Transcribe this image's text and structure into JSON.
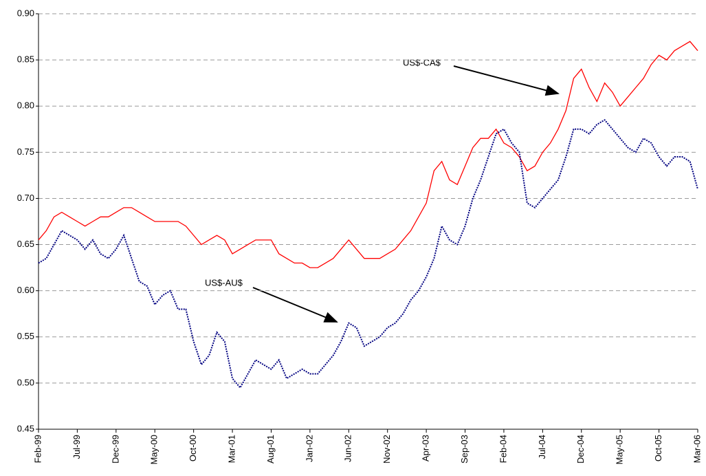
{
  "chart_data": {
    "type": "line",
    "categories": [
      "Feb-99",
      null,
      null,
      null,
      null,
      "Jul-99",
      null,
      null,
      null,
      null,
      "Dec-99",
      null,
      null,
      null,
      null,
      "May-00",
      null,
      null,
      null,
      null,
      "Oct-00",
      null,
      null,
      null,
      null,
      "Mar-01",
      null,
      null,
      null,
      null,
      "Aug-01",
      null,
      null,
      null,
      null,
      "Jan-02",
      null,
      null,
      null,
      null,
      "Jun-02",
      null,
      null,
      null,
      null,
      "Nov-02",
      null,
      null,
      null,
      null,
      "Apr-03",
      null,
      null,
      null,
      null,
      "Sep-03",
      null,
      null,
      null,
      null,
      "Feb-04",
      null,
      null,
      null,
      null,
      "Jul-04",
      null,
      null,
      null,
      null,
      "Dec-04",
      null,
      null,
      null,
      null,
      "May-05",
      null,
      null,
      null,
      null,
      "Oct-05",
      null,
      null,
      null,
      null,
      "Mar-06"
    ],
    "series": [
      {
        "name": "US$-CA$",
        "color": "#ff0000",
        "values": [
          0.655,
          0.665,
          0.68,
          0.685,
          0.68,
          0.675,
          0.67,
          0.675,
          0.68,
          0.68,
          0.685,
          0.69,
          0.69,
          0.685,
          0.68,
          0.675,
          0.675,
          0.675,
          0.675,
          0.67,
          0.66,
          0.65,
          0.655,
          0.66,
          0.655,
          0.64,
          0.645,
          0.65,
          0.655,
          0.655,
          0.655,
          0.64,
          0.635,
          0.63,
          0.63,
          0.625,
          0.625,
          0.63,
          0.635,
          0.645,
          0.655,
          0.645,
          0.635,
          0.635,
          0.635,
          0.64,
          0.645,
          0.655,
          0.665,
          0.68,
          0.695,
          0.73,
          0.74,
          0.72,
          0.715,
          0.735,
          0.755,
          0.765,
          0.765,
          0.775,
          0.76,
          0.755,
          0.745,
          0.73,
          0.735,
          0.75,
          0.76,
          0.775,
          0.795,
          0.83,
          0.84,
          0.82,
          0.805,
          0.825,
          0.815,
          0.8,
          0.81,
          0.82,
          0.83,
          0.845,
          0.855,
          0.85,
          0.86,
          0.865,
          0.87,
          0.86
        ]
      },
      {
        "name": "US$-AU$",
        "color": "#000080",
        "values": [
          0.63,
          0.635,
          0.65,
          0.665,
          0.66,
          0.655,
          0.645,
          0.655,
          0.64,
          0.635,
          0.645,
          0.66,
          0.635,
          0.61,
          0.605,
          0.585,
          0.595,
          0.6,
          0.58,
          0.58,
          0.545,
          0.52,
          0.53,
          0.555,
          0.545,
          0.505,
          0.495,
          0.51,
          0.525,
          0.52,
          0.515,
          0.525,
          0.505,
          0.51,
          0.515,
          0.51,
          0.51,
          0.52,
          0.53,
          0.545,
          0.565,
          0.56,
          0.54,
          0.545,
          0.55,
          0.56,
          0.565,
          0.575,
          0.59,
          0.6,
          0.615,
          0.635,
          0.67,
          0.655,
          0.65,
          0.67,
          0.7,
          0.72,
          0.745,
          0.77,
          0.775,
          0.76,
          0.75,
          0.695,
          0.69,
          0.7,
          0.71,
          0.72,
          0.745,
          0.775,
          0.775,
          0.77,
          0.78,
          0.785,
          0.775,
          0.765,
          0.755,
          0.75,
          0.765,
          0.76,
          0.745,
          0.735,
          0.745,
          0.745,
          0.74,
          0.71
        ]
      }
    ],
    "ylim": [
      0.45,
      0.9
    ],
    "yticks": [
      0.45,
      {
        "value": 0.5,
        "label": "0.50"
      },
      0.55,
      {
        "value": 0.6,
        "label": "0.60"
      },
      0.65,
      {
        "value": 0.7,
        "label": "0.70"
      },
      0.75,
      {
        "value": 0.8,
        "label": "0.80"
      },
      0.85,
      {
        "value": 0.9,
        "label": "0.90"
      }
    ],
    "grid": true
  }
}
